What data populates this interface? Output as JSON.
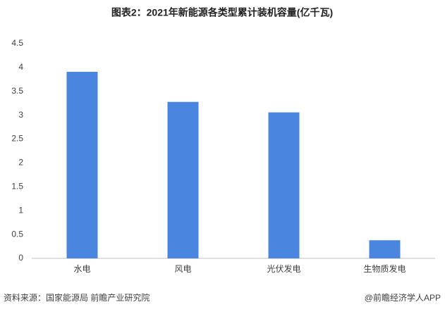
{
  "chart_data": {
    "type": "bar",
    "title": "图表2：2021年新能源各类型累计装机容量(亿千瓦)",
    "categories": [
      "水电",
      "风电",
      "光伏发电",
      "生物质发电"
    ],
    "values": [
      3.91,
      3.28,
      3.06,
      0.38
    ],
    "color": "#4a86e0",
    "ylim": [
      0,
      4.5
    ],
    "yticks": [
      0,
      0.5,
      1,
      1.5,
      2,
      2.5,
      3,
      3.5,
      4,
      4.5
    ],
    "grid": false,
    "source": "资料来源：国家能源局 前瞻产业研究院",
    "credit": "@前瞻经济学人APP"
  }
}
